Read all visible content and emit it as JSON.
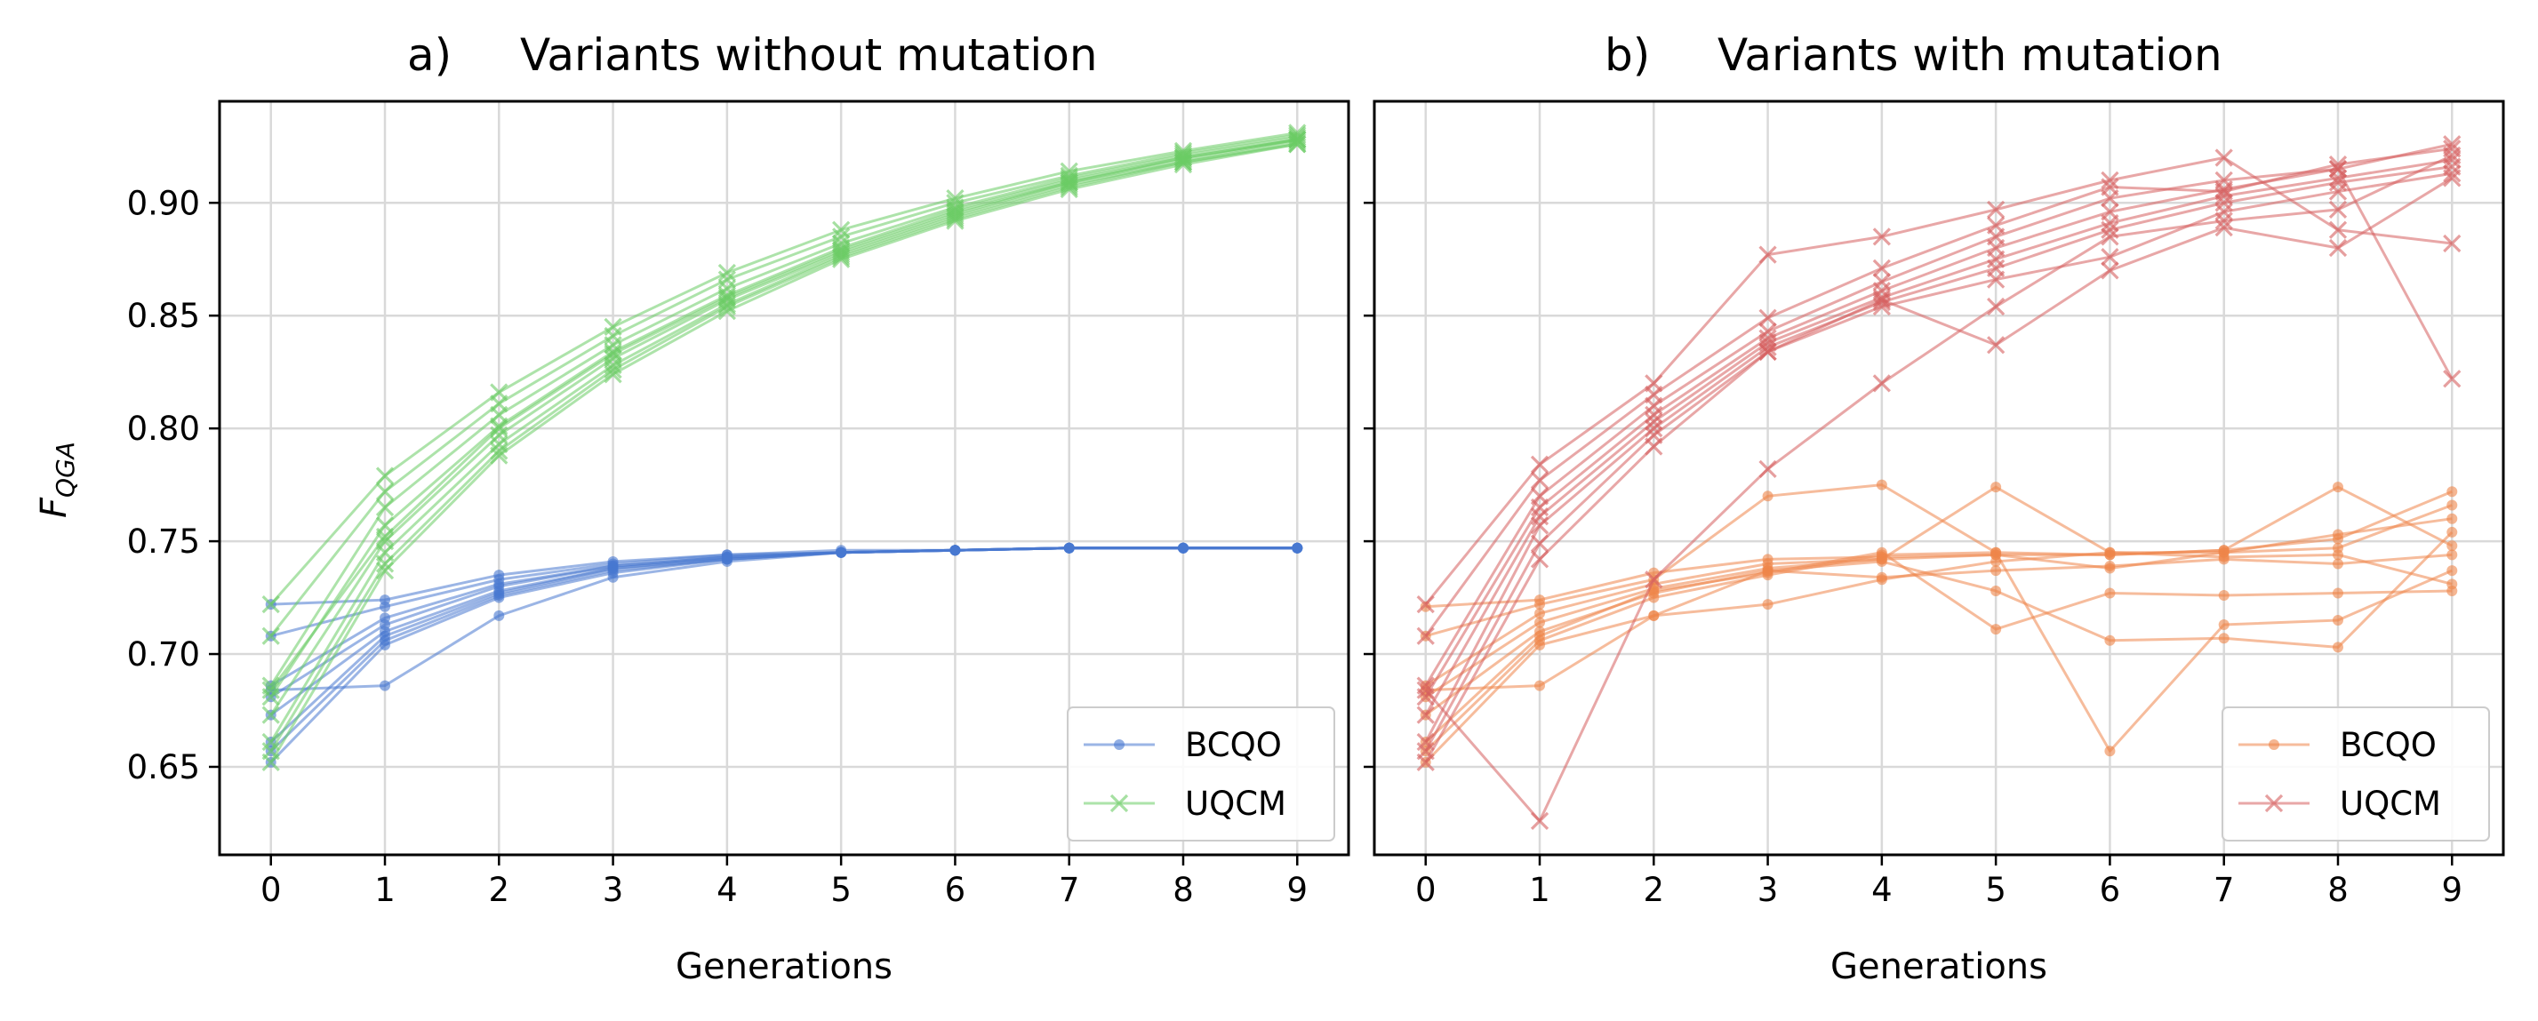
{
  "chart_data": [
    {
      "type": "line",
      "panel_letter": "a)",
      "title": "Variants without mutation",
      "xlabel": "Generations",
      "ylabel": "F",
      "ylabel_sub": "QGA",
      "x": [
        0,
        1,
        2,
        3,
        4,
        5,
        6,
        7,
        8,
        9
      ],
      "xlim": [
        -0.45,
        9.45
      ],
      "ylim": [
        0.611,
        0.945
      ],
      "yticks": [
        "0.65",
        "0.70",
        "0.75",
        "0.80",
        "0.85",
        "0.90"
      ],
      "xticks": [
        "0",
        "1",
        "2",
        "3",
        "4",
        "5",
        "6",
        "7",
        "8",
        "9"
      ],
      "grid": true,
      "legend_position": "lower-right",
      "legend": [
        {
          "label": "BCQO",
          "color": "#4878d0",
          "marker": "dot"
        },
        {
          "label": "UQCM",
          "color": "#6acc64",
          "marker": "x"
        }
      ],
      "series": [
        {
          "group": "BCQO",
          "color": "#4878d0",
          "marker": "dot",
          "values": [
            0.722,
            0.724,
            0.735,
            0.741,
            0.744,
            0.746,
            0.746,
            0.747,
            0.747,
            0.747
          ]
        },
        {
          "group": "BCQO",
          "color": "#4878d0",
          "marker": "dot",
          "values": [
            0.708,
            0.721,
            0.733,
            0.74,
            0.744,
            0.745,
            0.746,
            0.747,
            0.747,
            0.747
          ]
        },
        {
          "group": "BCQO",
          "color": "#4878d0",
          "marker": "dot",
          "values": [
            0.686,
            0.716,
            0.731,
            0.739,
            0.743,
            0.745,
            0.746,
            0.747,
            0.747,
            0.747
          ]
        },
        {
          "group": "BCQO",
          "color": "#4878d0",
          "marker": "dot",
          "values": [
            0.681,
            0.713,
            0.73,
            0.739,
            0.743,
            0.745,
            0.746,
            0.747,
            0.747,
            0.747
          ]
        },
        {
          "group": "BCQO",
          "color": "#4878d0",
          "marker": "dot",
          "values": [
            0.673,
            0.71,
            0.728,
            0.738,
            0.743,
            0.745,
            0.746,
            0.747,
            0.747,
            0.747
          ]
        },
        {
          "group": "BCQO",
          "color": "#4878d0",
          "marker": "dot",
          "values": [
            0.661,
            0.708,
            0.727,
            0.738,
            0.742,
            0.745,
            0.746,
            0.747,
            0.747,
            0.747
          ]
        },
        {
          "group": "BCQO",
          "color": "#4878d0",
          "marker": "dot",
          "values": [
            0.657,
            0.706,
            0.726,
            0.737,
            0.742,
            0.745,
            0.746,
            0.747,
            0.747,
            0.747
          ]
        },
        {
          "group": "BCQO",
          "color": "#4878d0",
          "marker": "dot",
          "values": [
            0.652,
            0.704,
            0.725,
            0.736,
            0.742,
            0.745,
            0.746,
            0.747,
            0.747,
            0.747
          ]
        },
        {
          "group": "BCQO",
          "color": "#4878d0",
          "marker": "dot",
          "values": [
            0.684,
            0.686,
            0.717,
            0.734,
            0.741,
            0.745,
            0.746,
            0.747,
            0.747,
            0.747
          ]
        },
        {
          "group": "UQCM",
          "color": "#6acc64",
          "marker": "x",
          "values": [
            0.722,
            0.779,
            0.816,
            0.845,
            0.869,
            0.888,
            0.902,
            0.914,
            0.923,
            0.931
          ]
        },
        {
          "group": "UQCM",
          "color": "#6acc64",
          "marker": "x",
          "values": [
            0.708,
            0.772,
            0.811,
            0.841,
            0.866,
            0.885,
            0.9,
            0.912,
            0.922,
            0.93
          ]
        },
        {
          "group": "UQCM",
          "color": "#6acc64",
          "marker": "x",
          "values": [
            0.686,
            0.765,
            0.806,
            0.837,
            0.862,
            0.882,
            0.898,
            0.911,
            0.921,
            0.929
          ]
        },
        {
          "group": "UQCM",
          "color": "#6acc64",
          "marker": "x",
          "values": [
            0.681,
            0.757,
            0.801,
            0.834,
            0.859,
            0.88,
            0.897,
            0.91,
            0.92,
            0.928
          ]
        },
        {
          "group": "UQCM",
          "color": "#6acc64",
          "marker": "x",
          "values": [
            0.673,
            0.75,
            0.797,
            0.831,
            0.857,
            0.878,
            0.895,
            0.909,
            0.919,
            0.928
          ]
        },
        {
          "group": "UQCM",
          "color": "#6acc64",
          "marker": "x",
          "values": [
            0.661,
            0.745,
            0.793,
            0.828,
            0.855,
            0.877,
            0.894,
            0.908,
            0.918,
            0.927
          ]
        },
        {
          "group": "UQCM",
          "color": "#6acc64",
          "marker": "x",
          "values": [
            0.657,
            0.74,
            0.79,
            0.826,
            0.854,
            0.876,
            0.893,
            0.907,
            0.918,
            0.926
          ]
        },
        {
          "group": "UQCM",
          "color": "#6acc64",
          "marker": "x",
          "values": [
            0.652,
            0.737,
            0.788,
            0.824,
            0.852,
            0.875,
            0.892,
            0.906,
            0.917,
            0.926
          ]
        },
        {
          "group": "UQCM",
          "color": "#6acc64",
          "marker": "x",
          "values": [
            0.684,
            0.752,
            0.8,
            0.833,
            0.858,
            0.879,
            0.896,
            0.909,
            0.92,
            0.928
          ]
        }
      ]
    },
    {
      "type": "line",
      "panel_letter": "b)",
      "title": "Variants with mutation",
      "xlabel": "Generations",
      "x": [
        0,
        1,
        2,
        3,
        4,
        5,
        6,
        7,
        8,
        9
      ],
      "xlim": [
        -0.45,
        9.45
      ],
      "ylim": [
        0.611,
        0.945
      ],
      "xticks": [
        "0",
        "1",
        "2",
        "3",
        "4",
        "5",
        "6",
        "7",
        "8",
        "9"
      ],
      "grid": true,
      "legend_position": "lower-right",
      "legend": [
        {
          "label": "BCQO",
          "color": "#ee854a",
          "marker": "dot"
        },
        {
          "label": "UQCM",
          "color": "#d65f5f",
          "marker": "x"
        }
      ],
      "series": [
        {
          "group": "BCQO",
          "color": "#ee854a",
          "marker": "dot",
          "values": [
            0.721,
            0.724,
            0.736,
            0.742,
            0.743,
            0.744,
            0.744,
            0.746,
            0.774,
            0.748
          ]
        },
        {
          "group": "BCQO",
          "color": "#ee854a",
          "marker": "dot",
          "values": [
            0.708,
            0.722,
            0.733,
            0.77,
            0.775,
            0.745,
            0.744,
            0.746,
            0.751,
            0.772
          ]
        },
        {
          "group": "BCQO",
          "color": "#ee854a",
          "marker": "dot",
          "values": [
            0.686,
            0.718,
            0.731,
            0.74,
            0.742,
            0.774,
            0.745,
            0.745,
            0.747,
            0.766
          ]
        },
        {
          "group": "BCQO",
          "color": "#ee854a",
          "marker": "dot",
          "values": [
            0.681,
            0.714,
            0.729,
            0.738,
            0.742,
            0.744,
            0.738,
            0.745,
            0.753,
            0.76
          ]
        },
        {
          "group": "BCQO",
          "color": "#ee854a",
          "marker": "dot",
          "values": [
            0.673,
            0.71,
            0.727,
            0.737,
            0.741,
            0.728,
            0.706,
            0.707,
            0.703,
            0.754
          ]
        },
        {
          "group": "BCQO",
          "color": "#ee854a",
          "marker": "dot",
          "values": [
            0.661,
            0.708,
            0.728,
            0.736,
            0.745,
            0.711,
            0.727,
            0.726,
            0.727,
            0.728
          ]
        },
        {
          "group": "BCQO",
          "color": "#ee854a",
          "marker": "dot",
          "values": [
            0.657,
            0.706,
            0.725,
            0.735,
            0.744,
            0.745,
            0.657,
            0.713,
            0.715,
            0.737
          ]
        },
        {
          "group": "BCQO",
          "color": "#ee854a",
          "marker": "dot",
          "values": [
            0.652,
            0.704,
            0.717,
            0.722,
            0.733,
            0.741,
            0.745,
            0.743,
            0.744,
            0.731
          ]
        },
        {
          "group": "BCQO",
          "color": "#ee854a",
          "marker": "dot",
          "values": [
            0.684,
            0.686,
            0.717,
            0.737,
            0.734,
            0.737,
            0.739,
            0.742,
            0.74,
            0.744
          ]
        },
        {
          "group": "UQCM",
          "color": "#d65f5f",
          "marker": "x",
          "values": [
            0.722,
            0.784,
            0.82,
            0.877,
            0.885,
            0.897,
            0.91,
            0.92,
            0.888,
            0.882
          ]
        },
        {
          "group": "UQCM",
          "color": "#d65f5f",
          "marker": "x",
          "values": [
            0.708,
            0.777,
            0.815,
            0.849,
            0.871,
            0.89,
            0.907,
            0.905,
            0.917,
            0.924
          ]
        },
        {
          "group": "UQCM",
          "color": "#d65f5f",
          "marker": "x",
          "values": [
            0.686,
            0.77,
            0.81,
            0.843,
            0.865,
            0.885,
            0.902,
            0.91,
            0.915,
            0.822
          ]
        },
        {
          "group": "UQCM",
          "color": "#d65f5f",
          "marker": "x",
          "values": [
            0.681,
            0.765,
            0.806,
            0.84,
            0.861,
            0.88,
            0.896,
            0.906,
            0.915,
            0.926
          ]
        },
        {
          "group": "UQCM",
          "color": "#d65f5f",
          "marker": "x",
          "values": [
            0.673,
            0.761,
            0.803,
            0.838,
            0.858,
            0.875,
            0.891,
            0.903,
            0.911,
            0.919
          ]
        },
        {
          "group": "UQCM",
          "color": "#d65f5f",
          "marker": "x",
          "values": [
            0.661,
            0.757,
            0.8,
            0.836,
            0.856,
            0.871,
            0.888,
            0.9,
            0.909,
            0.916
          ]
        },
        {
          "group": "UQCM",
          "color": "#d65f5f",
          "marker": "x",
          "values": [
            0.657,
            0.749,
            0.797,
            0.834,
            0.854,
            0.866,
            0.876,
            0.896,
            0.905,
            0.913
          ]
        },
        {
          "group": "UQCM",
          "color": "#d65f5f",
          "marker": "x",
          "values": [
            0.652,
            0.742,
            0.792,
            0.834,
            0.857,
            0.837,
            0.87,
            0.889,
            0.88,
            0.911
          ]
        },
        {
          "group": "UQCM",
          "color": "#d65f5f",
          "marker": "x",
          "values": [
            0.684,
            0.626,
            0.733,
            0.782,
            0.82,
            0.854,
            0.885,
            0.892,
            0.897,
            0.921
          ]
        }
      ]
    }
  ]
}
